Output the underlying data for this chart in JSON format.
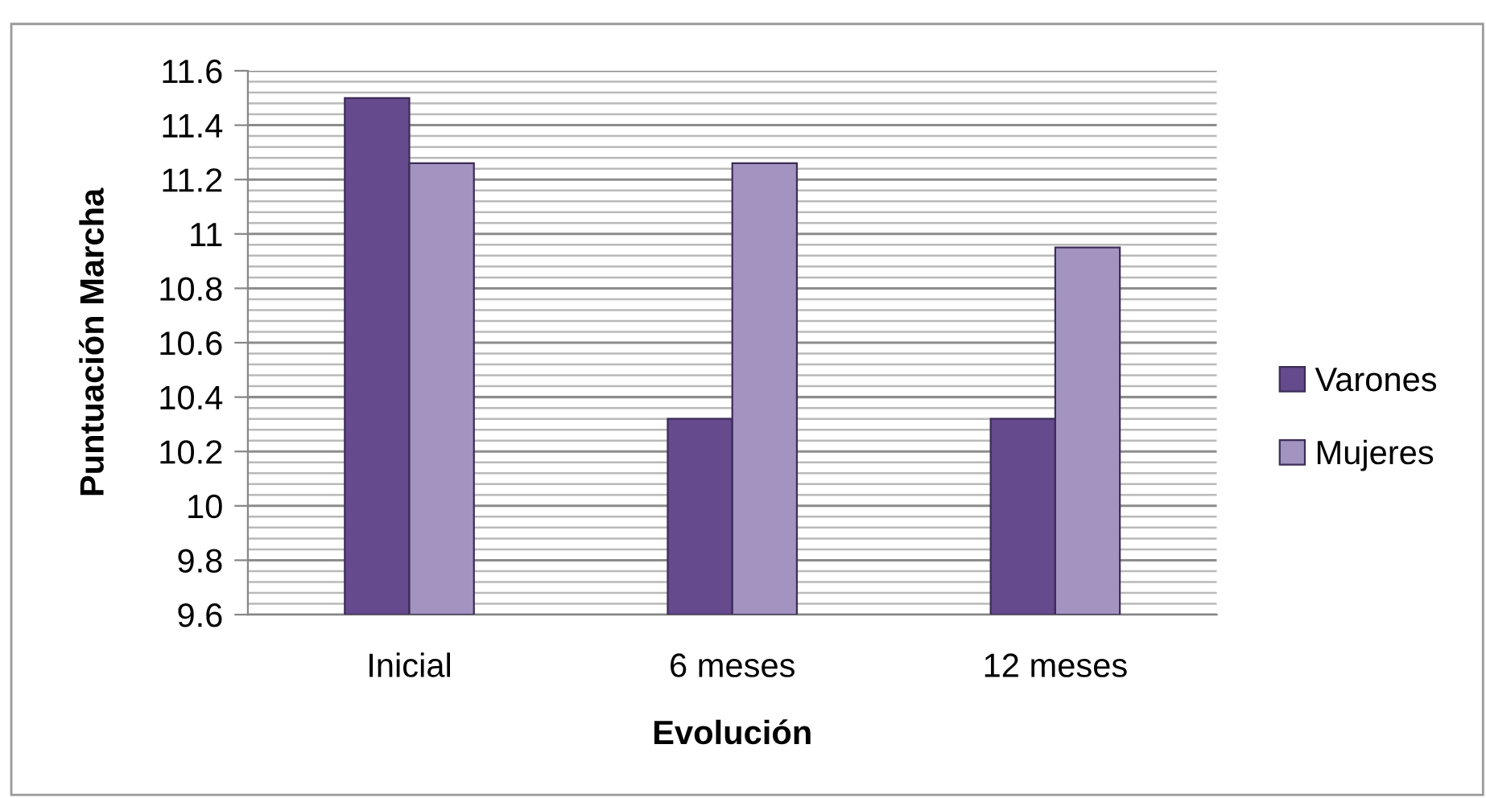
{
  "chart_data": {
    "type": "bar",
    "xlabel": "Evolución",
    "ylabel": "Puntuación Marcha",
    "categories": [
      "Inicial",
      "6 meses",
      "12 meses"
    ],
    "series": [
      {
        "name": "Varones",
        "color": "#654a8e",
        "values": [
          11.5,
          10.32,
          10.32
        ]
      },
      {
        "name": "Mujeres",
        "color": "#a393c0",
        "values": [
          11.26,
          11.26,
          10.95
        ]
      }
    ],
    "ylim": [
      9.6,
      11.6
    ],
    "yticks": [
      {
        "value": 9.6,
        "label": "9.6"
      },
      {
        "value": 9.64,
        "label": null
      },
      {
        "value": 9.68,
        "label": null
      },
      {
        "value": 9.72,
        "label": null
      },
      {
        "value": 9.76,
        "label": null
      },
      {
        "value": 9.8,
        "label": "9.8"
      },
      {
        "value": 9.84,
        "label": null
      },
      {
        "value": 9.88,
        "label": null
      },
      {
        "value": 9.92,
        "label": null
      },
      {
        "value": 9.96,
        "label": null
      },
      {
        "value": 10,
        "label": "10"
      },
      {
        "value": 10.04,
        "label": null
      },
      {
        "value": 10.08,
        "label": null
      },
      {
        "value": 10.12,
        "label": null
      },
      {
        "value": 10.16,
        "label": null
      },
      {
        "value": 10.2,
        "label": "10.2"
      },
      {
        "value": 10.24,
        "label": null
      },
      {
        "value": 10.28,
        "label": null
      },
      {
        "value": 10.32,
        "label": null
      },
      {
        "value": 10.36,
        "label": null
      },
      {
        "value": 10.4,
        "label": "10.4"
      },
      {
        "value": 10.44,
        "label": null
      },
      {
        "value": 10.48,
        "label": null
      },
      {
        "value": 10.52,
        "label": null
      },
      {
        "value": 10.56,
        "label": null
      },
      {
        "value": 10.6,
        "label": "10.6"
      },
      {
        "value": 10.64,
        "label": null
      },
      {
        "value": 10.68,
        "label": null
      },
      {
        "value": 10.72,
        "label": null
      },
      {
        "value": 10.76,
        "label": null
      },
      {
        "value": 10.8,
        "label": "10.8"
      },
      {
        "value": 10.84,
        "label": null
      },
      {
        "value": 10.88,
        "label": null
      },
      {
        "value": 10.92,
        "label": null
      },
      {
        "value": 10.96,
        "label": null
      },
      {
        "value": 11,
        "label": "11"
      },
      {
        "value": 11.04,
        "label": null
      },
      {
        "value": 11.08,
        "label": null
      },
      {
        "value": 11.12,
        "label": null
      },
      {
        "value": 11.16,
        "label": null
      },
      {
        "value": 11.2,
        "label": "11.2"
      },
      {
        "value": 11.24,
        "label": null
      },
      {
        "value": 11.28,
        "label": null
      },
      {
        "value": 11.32,
        "label": null
      },
      {
        "value": 11.36,
        "label": null
      },
      {
        "value": 11.4,
        "label": "11.4"
      },
      {
        "value": 11.44,
        "label": null
      },
      {
        "value": 11.48,
        "label": null
      },
      {
        "value": 11.52,
        "label": null
      },
      {
        "value": 11.56,
        "label": null
      },
      {
        "value": 11.6,
        "label": "11.6"
      }
    ],
    "grid": "y",
    "legend": "right"
  }
}
